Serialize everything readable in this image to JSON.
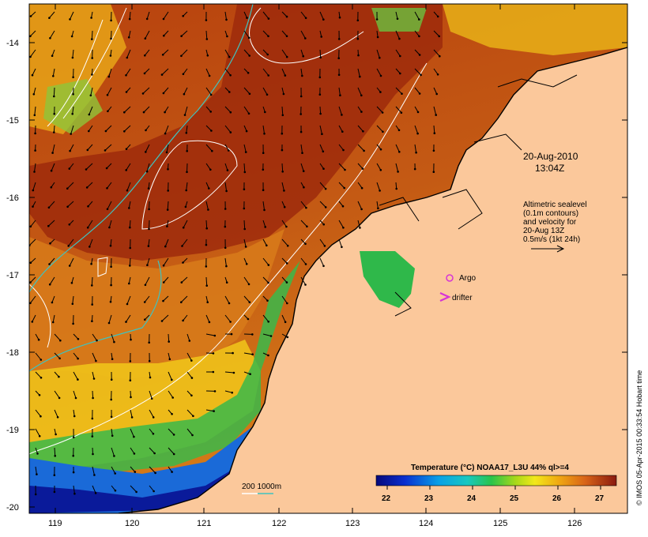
{
  "map": {
    "date_line1": "20-Aug-2010",
    "date_line2": "13:04Z",
    "info_lines": [
      "Altimetric sealevel",
      "(0.1m contours)",
      "and velocity for",
      "20-Aug 13Z",
      "0.5m/s (1kt 24h)"
    ],
    "legend_argo": "Argo",
    "legend_drifter": "drifter",
    "depth_label": "200  1000m",
    "colorbar_title": "Temperature (°C) NOAA17_L3U 44% ql>=4",
    "colorbar_ticks": [
      "22",
      "23",
      "24",
      "25",
      "26",
      "27"
    ],
    "credit": "© IMOS 05-Apr-2015 00:33:54 Hobart time",
    "lat_labels": [
      "-14",
      "-15",
      "-16",
      "-17",
      "-18",
      "-19",
      "-20"
    ],
    "lon_labels": [
      "119",
      "120",
      "121",
      "122",
      "123",
      "124",
      "125",
      "126"
    ],
    "colors": {
      "land": "#fbc89b",
      "sst_warm": "#a6320e",
      "sst_mid": "#d87418",
      "sst_cool": "#0a1a9a",
      "contour": "#ffffff",
      "isobath": "#3fc3c0",
      "argo": "#d634d6"
    }
  }
}
